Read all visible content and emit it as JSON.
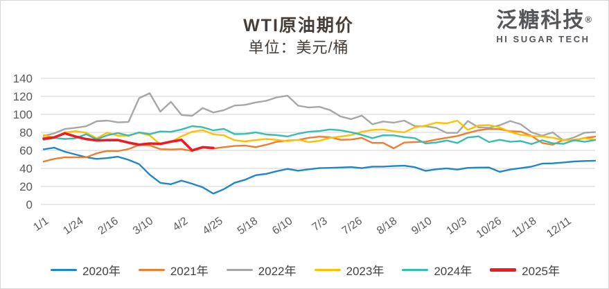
{
  "header": {
    "title": "WTI原油期价",
    "subtitle": "单位：美元/桶"
  },
  "logo": {
    "name": "泛糖科技",
    "registered": "®",
    "subtext": "HI SUGAR TECH"
  },
  "axis_colors": {
    "grid": "#d9d9d9",
    "tick_label": "#595959"
  },
  "chart_data": {
    "type": "line",
    "title": "WTI原油期价",
    "unit_label": "单位：美元/桶",
    "ylabel": "",
    "xlabel": "",
    "ylim": [
      0,
      140
    ],
    "yticks": [
      0,
      20,
      40,
      60,
      80,
      100,
      120,
      140
    ],
    "grid": true,
    "legend_position": "bottom",
    "xtick_labels": [
      "1/1",
      "1/24",
      "2/16",
      "3/10",
      "4/2",
      "4/25",
      "5/18",
      "6/10",
      "7/3",
      "7/26",
      "8/18",
      "9/10",
      "10/3",
      "10/26",
      "11/18",
      "12/11"
    ],
    "xtick_days": [
      1,
      24,
      47,
      70,
      93,
      116,
      139,
      162,
      185,
      208,
      231,
      254,
      277,
      300,
      323,
      346
    ],
    "x_axis_note": "day of year, series sampled weekly",
    "series": [
      {
        "name": "2020年",
        "color": "#1f86c8",
        "width": 2.4,
        "start_day": 1,
        "step_days": 7,
        "values": [
          61.2,
          63.0,
          58.5,
          55.5,
          52.5,
          50.5,
          51.5,
          53.0,
          49.5,
          44.8,
          33.0,
          24.0,
          22.5,
          26.5,
          23.0,
          19.0,
          12.0,
          17.0,
          24.0,
          27.5,
          32.5,
          34.0,
          37.0,
          39.5,
          37.5,
          39.0,
          40.3,
          40.6,
          41.0,
          41.5,
          40.3,
          41.9,
          42.0,
          42.6,
          43.0,
          41.4,
          37.3,
          39.0,
          40.1,
          38.7,
          40.6,
          40.9,
          41.0,
          36.2,
          38.8,
          40.3,
          42.0,
          45.3,
          45.6,
          46.6,
          47.7,
          48.2,
          48.5
        ]
      },
      {
        "name": "2021年",
        "color": "#ed7d31",
        "width": 2.4,
        "start_day": 1,
        "step_days": 7,
        "values": [
          47.6,
          50.6,
          52.4,
          52.3,
          52.2,
          56.8,
          59.5,
          59.2,
          61.5,
          66.1,
          65.6,
          61.4,
          61.0,
          61.5,
          59.3,
          63.1,
          62.1,
          63.6,
          64.9,
          65.4,
          63.6,
          66.3,
          69.6,
          70.9,
          71.6,
          74.0,
          75.2,
          74.6,
          71.8,
          72.1,
          73.9,
          68.3,
          68.4,
          62.3,
          68.7,
          69.3,
          69.7,
          72.0,
          74.0,
          75.9,
          79.4,
          82.3,
          83.8,
          83.6,
          81.3,
          80.8,
          76.1,
          68.2,
          66.3,
          71.7,
          70.9,
          73.8,
          75.2
        ]
      },
      {
        "name": "2022年",
        "color": "#a6a6a6",
        "width": 2.4,
        "start_day": 1,
        "step_days": 7,
        "values": [
          76.1,
          78.9,
          83.8,
          85.1,
          86.8,
          92.3,
          93.1,
          91.1,
          91.6,
          118.0,
          123.5,
          103.0,
          113.9,
          99.3,
          98.3,
          107.0,
          102.1,
          104.7,
          109.8,
          110.5,
          113.2,
          115.1,
          118.9,
          120.7,
          109.6,
          107.6,
          108.4,
          104.8,
          97.6,
          94.7,
          98.6,
          89.0,
          92.1,
          90.8,
          93.1,
          86.9,
          86.8,
          85.1,
          79.5,
          79.5,
          92.6,
          85.6,
          85.1,
          87.9,
          92.6,
          88.9,
          80.1,
          76.3,
          80.0,
          71.0,
          74.3,
          79.6,
          80.3
        ]
      },
      {
        "name": "2023年",
        "color": "#ffc000",
        "width": 2.4,
        "start_day": 1,
        "step_days": 7,
        "values": [
          77.0,
          74.0,
          79.9,
          81.3,
          79.7,
          73.4,
          79.7,
          76.3,
          76.3,
          79.7,
          76.7,
          66.7,
          69.3,
          75.7,
          80.7,
          82.5,
          77.9,
          76.8,
          71.3,
          70.0,
          71.5,
          72.7,
          71.7,
          70.2,
          71.8,
          69.2,
          70.6,
          73.9,
          75.4,
          77.1,
          80.6,
          82.8,
          83.2,
          81.3,
          80.1,
          85.6,
          87.5,
          90.8,
          90.0,
          93.0,
          82.8,
          87.7,
          88.1,
          85.5,
          80.5,
          77.2,
          75.9,
          75.5,
          74.1,
          71.2,
          71.8,
          73.6,
          71.7
        ]
      },
      {
        "name": "2024年",
        "color": "#36bdb2",
        "width": 2.4,
        "start_day": 1,
        "step_days": 7,
        "values": [
          71.7,
          73.8,
          72.7,
          73.4,
          78.0,
          72.3,
          76.8,
          79.2,
          76.5,
          80.0,
          78.0,
          81.0,
          80.6,
          83.2,
          86.9,
          85.7,
          82.2,
          83.9,
          78.1,
          78.3,
          80.0,
          77.7,
          76.9,
          75.5,
          78.5,
          80.7,
          81.5,
          83.2,
          82.2,
          80.1,
          77.2,
          73.5,
          76.8,
          76.7,
          74.8,
          73.6,
          67.7,
          68.7,
          71.0,
          68.2,
          74.4,
          75.6,
          69.2,
          71.8,
          69.5,
          70.4,
          67.0,
          71.2,
          68.0,
          67.2,
          71.3,
          69.5,
          71.5
        ]
      },
      {
        "name": "2025年",
        "color": "#ec1c24",
        "width": 3.6,
        "start_day": 1,
        "step_days": 7,
        "values": [
          73.1,
          74.5,
          79.0,
          75.4,
          72.6,
          71.0,
          71.4,
          71.5,
          68.6,
          66.3,
          67.7,
          67.2,
          69.7,
          71.7,
          60.0,
          63.5,
          62.8
        ]
      }
    ]
  }
}
